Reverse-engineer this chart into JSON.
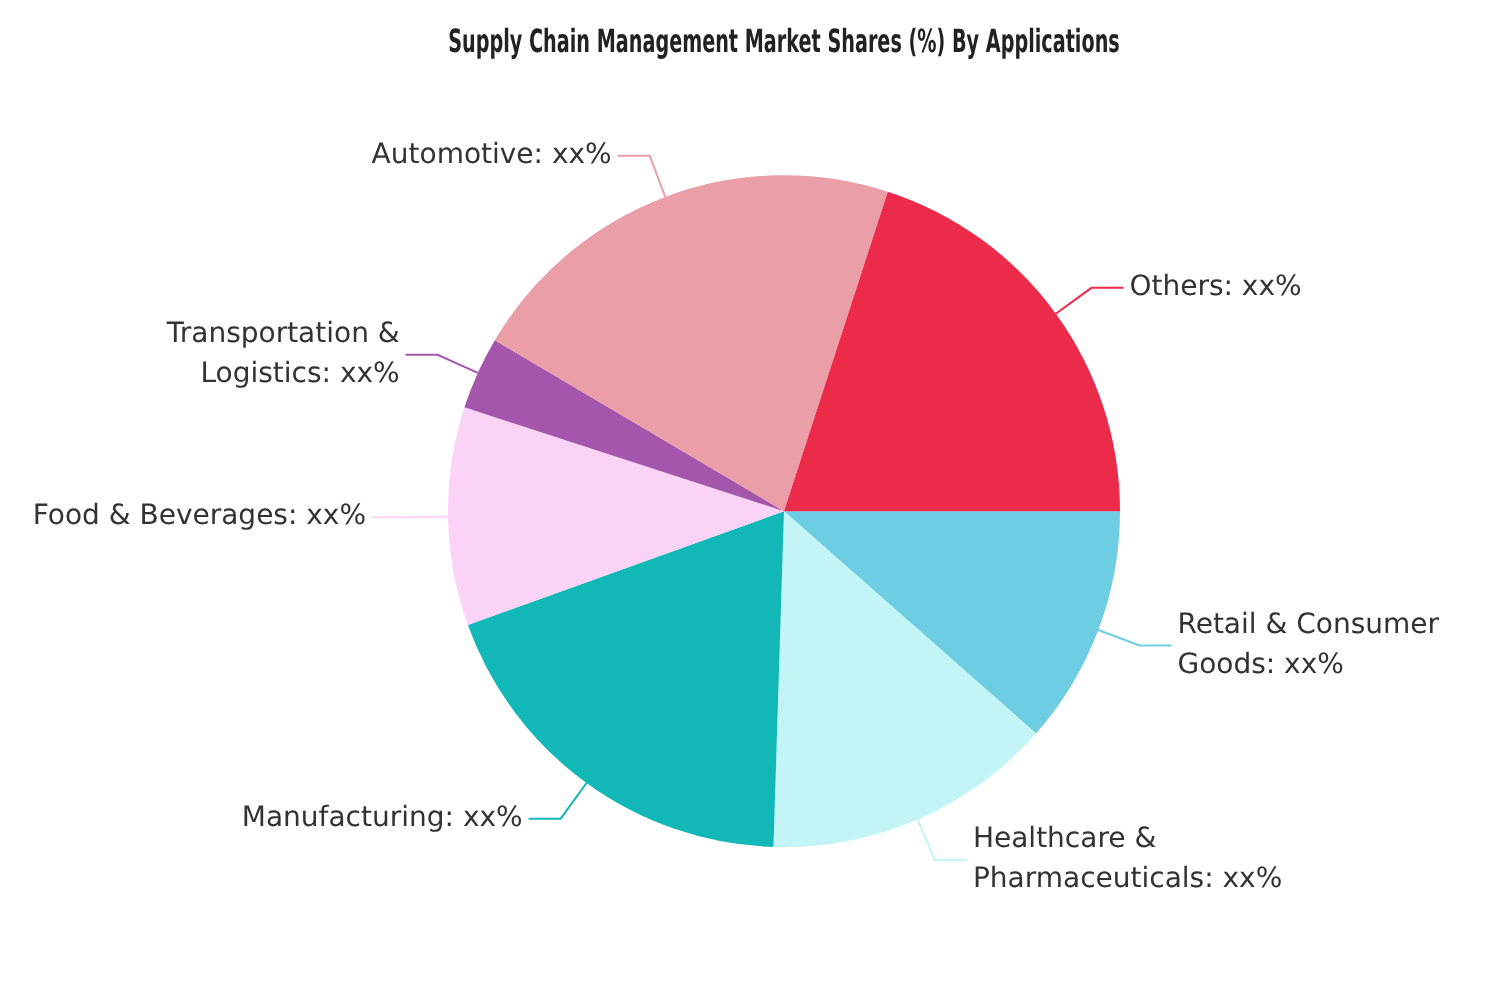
{
  "chart_data": {
    "type": "pie",
    "title": "Supply Chain Management Market Shares (%) By Applications",
    "categories": [
      "Retail & Consumer Goods",
      "Healthcare & Pharmaceuticals",
      "Manufacturing",
      "Food & Beverages",
      "Transportation & Logistics",
      "Automotive",
      "Others"
    ],
    "values": [
      11.5,
      14,
      19,
      10.5,
      3.5,
      21.5,
      20
    ],
    "colors": [
      "#6dcde3",
      "#c3f5f7",
      "#12b8b8",
      "#fbd3f7",
      "#a455ac",
      "#ea9fa8",
      "#ec2a4a"
    ],
    "value_labels": [
      "xx%",
      "xx%",
      "xx%",
      "xx%",
      "xx%",
      "xx%",
      "xx%"
    ],
    "legend": false
  }
}
